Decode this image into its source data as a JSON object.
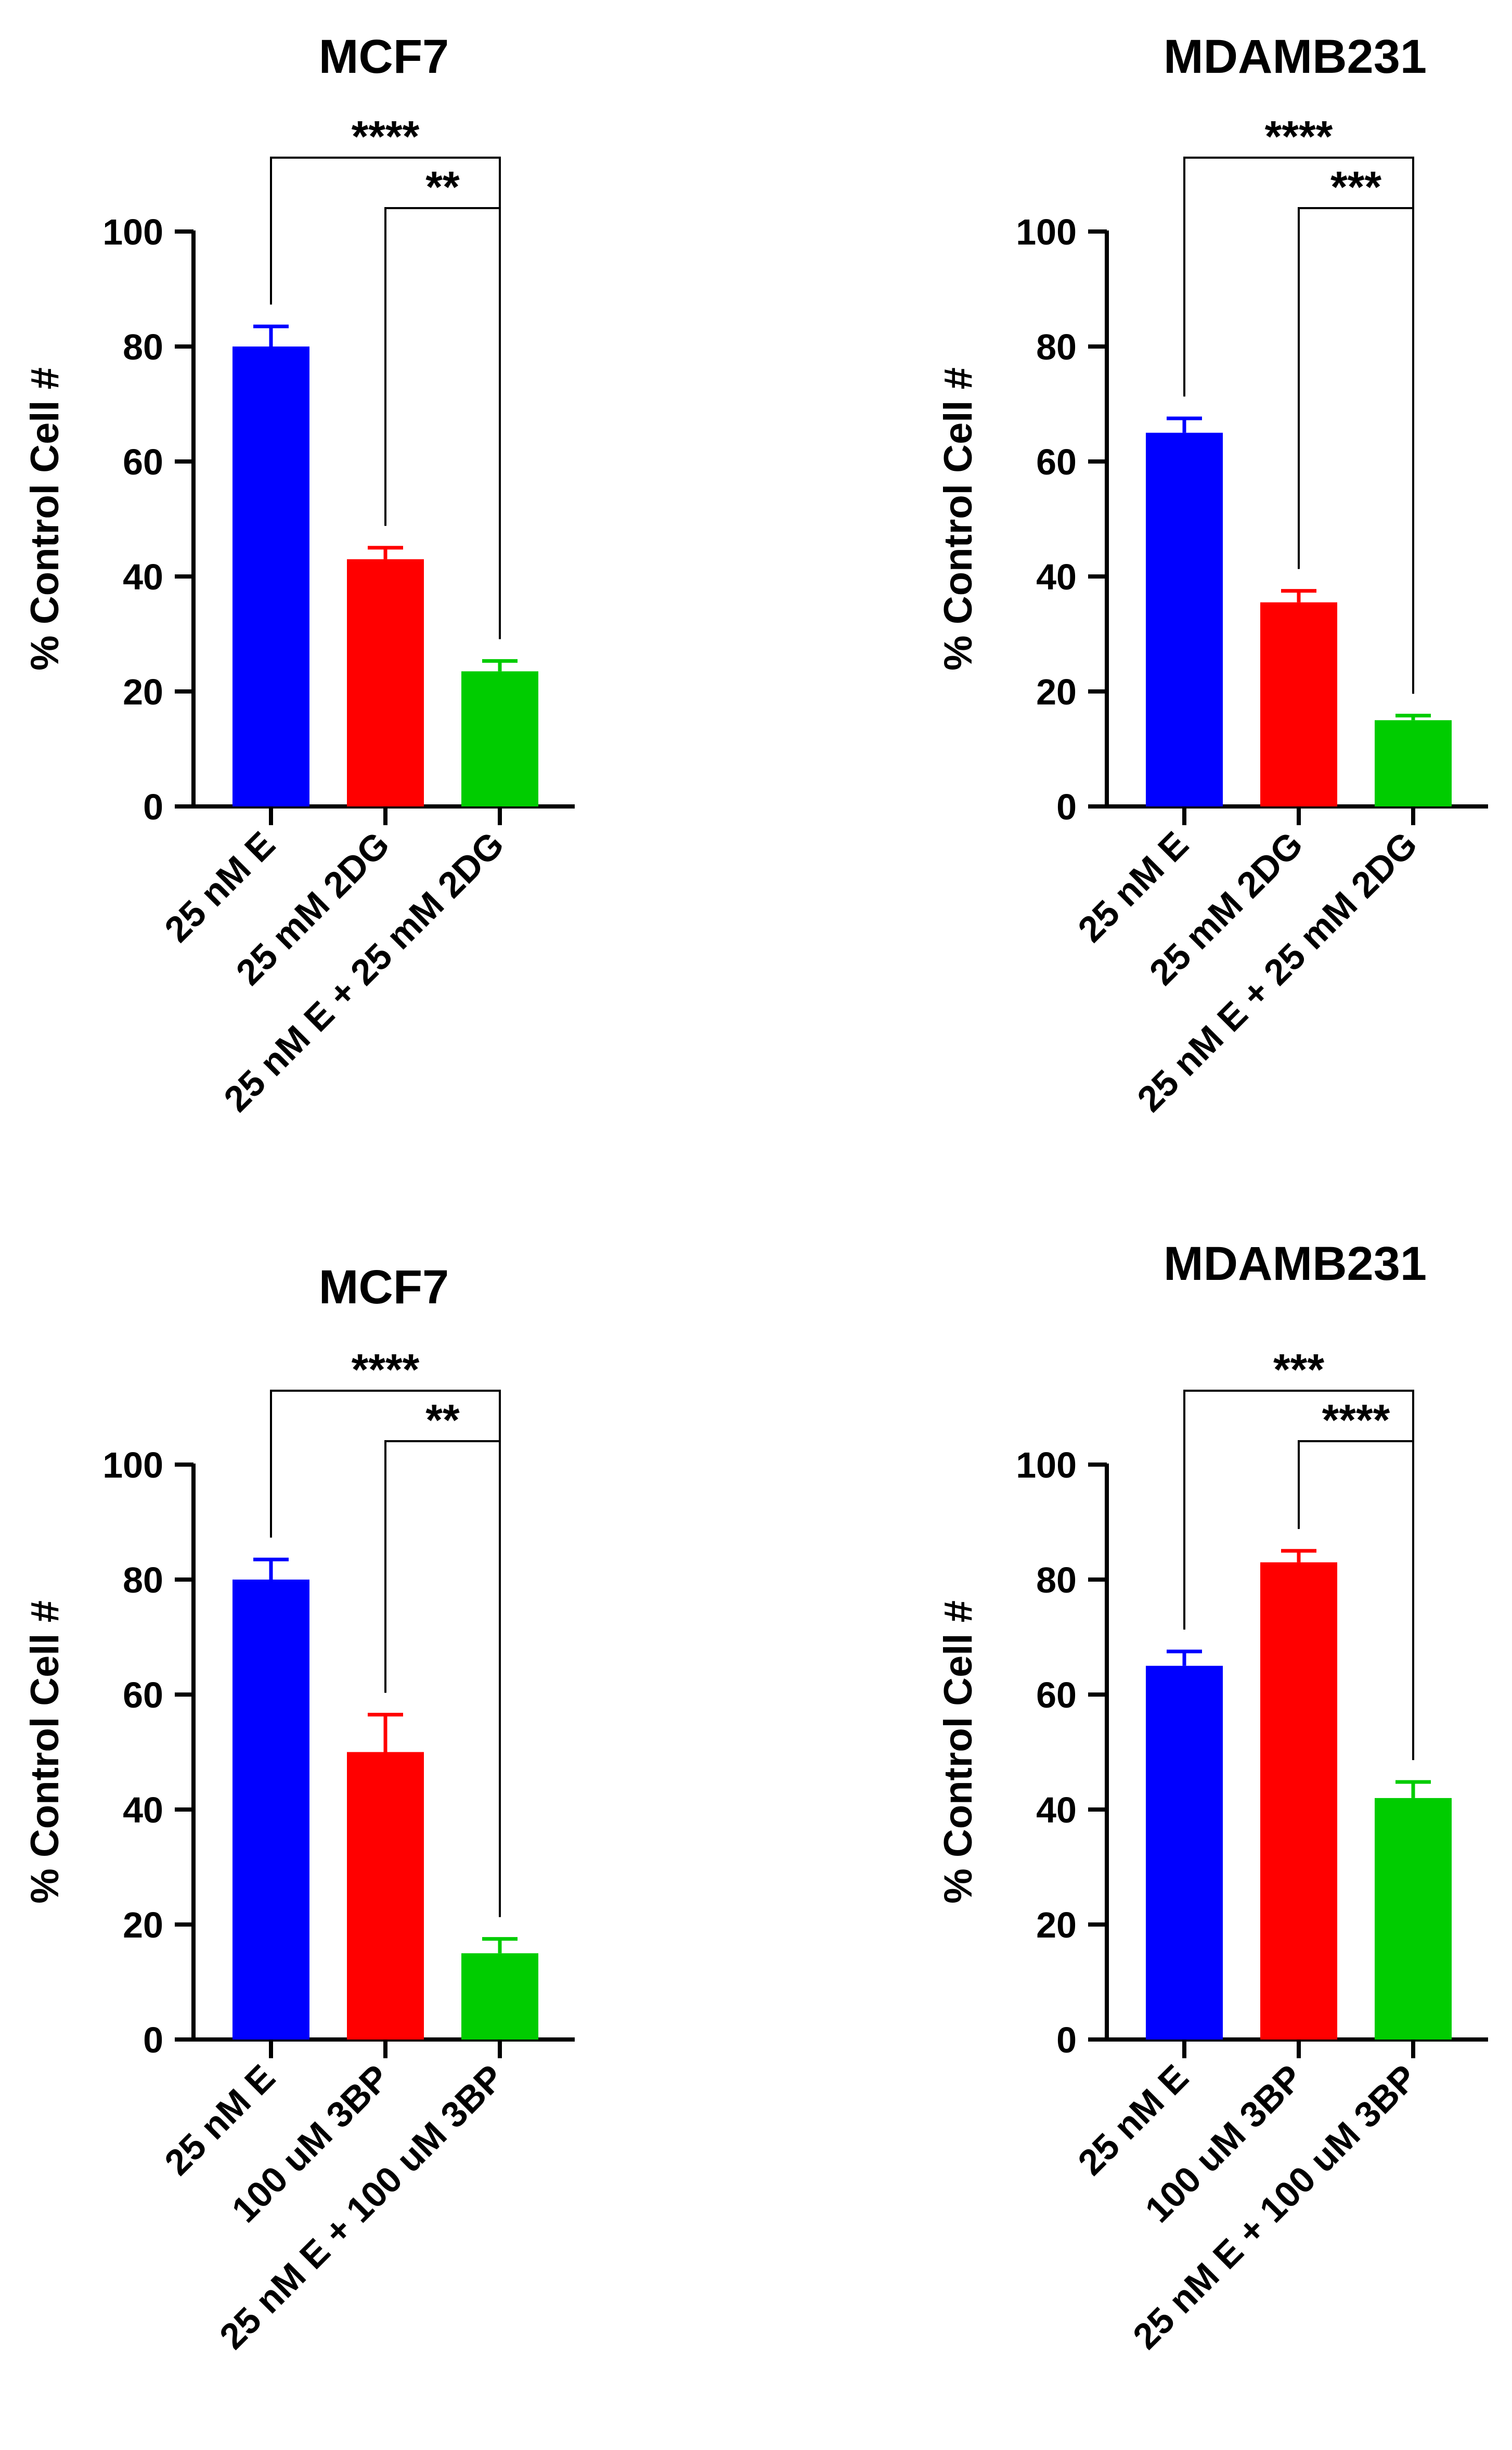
{
  "chart_data": [
    {
      "type": "bar",
      "title": "MCF7",
      "ylabel": "% Control Cell #",
      "ylim": [
        0,
        100
      ],
      "yticks": [
        "0",
        "20",
        "40",
        "60",
        "80",
        "100"
      ],
      "categories": [
        "25 nM E",
        "25 mM 2DG",
        "25 nM E + 25 mM 2DG"
      ],
      "values": [
        80,
        43,
        23.5
      ],
      "errors": [
        3.5,
        2,
        1.8
      ],
      "colors": [
        "#0000ff",
        "#ff0000",
        "#00cc00"
      ],
      "significance": [
        {
          "from": 0,
          "to": 2,
          "label": "****"
        },
        {
          "from": 1,
          "to": 2,
          "label": "**"
        }
      ]
    },
    {
      "type": "bar",
      "title": "MDAMB231",
      "ylabel": "% Control Cell #",
      "ylim": [
        0,
        100
      ],
      "yticks": [
        "0",
        "20",
        "40",
        "60",
        "80",
        "100"
      ],
      "categories": [
        "25 nM E",
        "25 mM 2DG",
        "25 nM E + 25 mM 2DG"
      ],
      "values": [
        65,
        35.5,
        15
      ],
      "errors": [
        2.5,
        2,
        0.8
      ],
      "colors": [
        "#0000ff",
        "#ff0000",
        "#00cc00"
      ],
      "significance": [
        {
          "from": 0,
          "to": 2,
          "label": "****"
        },
        {
          "from": 1,
          "to": 2,
          "label": "***"
        }
      ]
    },
    {
      "type": "bar",
      "title": "MCF7",
      "ylabel": "% Control Cell #",
      "ylim": [
        0,
        100
      ],
      "yticks": [
        "0",
        "20",
        "40",
        "60",
        "80",
        "100"
      ],
      "categories": [
        "25 nM E",
        "100 uM 3BP",
        "25 nM E + 100 uM 3BP"
      ],
      "values": [
        80,
        50,
        15
      ],
      "errors": [
        3.5,
        6.5,
        2.5
      ],
      "colors": [
        "#0000ff",
        "#ff0000",
        "#00cc00"
      ],
      "significance": [
        {
          "from": 0,
          "to": 2,
          "label": "****"
        },
        {
          "from": 1,
          "to": 2,
          "label": "**"
        }
      ]
    },
    {
      "type": "bar",
      "title": "MDAMB231",
      "ylabel": "% Control Cell #",
      "ylim": [
        0,
        100
      ],
      "yticks": [
        "0",
        "20",
        "40",
        "60",
        "80",
        "100"
      ],
      "categories": [
        "25 nM E",
        "100 uM 3BP",
        "25 nM E + 100 uM 3BP"
      ],
      "values": [
        65,
        83,
        42
      ],
      "errors": [
        2.5,
        2,
        2.8
      ],
      "colors": [
        "#0000ff",
        "#ff0000",
        "#00cc00"
      ],
      "significance": [
        {
          "from": 0,
          "to": 2,
          "label": "***"
        },
        {
          "from": 1,
          "to": 2,
          "label": "****"
        }
      ]
    }
  ]
}
